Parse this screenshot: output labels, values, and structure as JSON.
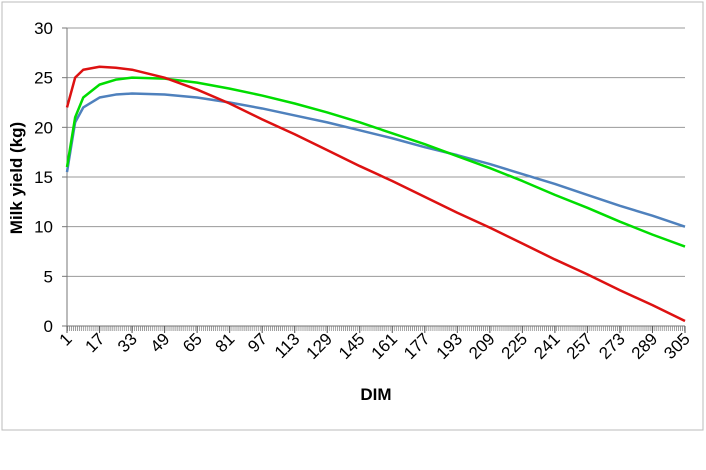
{
  "chart_data": {
    "type": "line",
    "x_label": "DIM",
    "y_label": "Milk yield (kg)",
    "x": [
      1,
      5,
      9,
      17,
      25,
      33,
      49,
      65,
      81,
      97,
      113,
      129,
      145,
      161,
      177,
      193,
      209,
      225,
      241,
      257,
      273,
      289,
      305
    ],
    "series": [
      {
        "color": "#4f81bd",
        "values": [
          15.5,
          20.5,
          22,
          23,
          23.3,
          23.4,
          23.3,
          23,
          22.5,
          21.9,
          21.2,
          20.5,
          19.7,
          18.9,
          18,
          17.2,
          16.3,
          15.3,
          14.3,
          13.2,
          12.1,
          11.1,
          10
        ]
      },
      {
        "color": "#00dd00",
        "values": [
          16,
          21,
          23,
          24.3,
          24.8,
          25,
          24.9,
          24.5,
          23.9,
          23.2,
          22.4,
          21.5,
          20.5,
          19.4,
          18.3,
          17.1,
          15.9,
          14.6,
          13.2,
          11.9,
          10.5,
          9.2,
          8
        ]
      },
      {
        "color": "#dd1111",
        "values": [
          22,
          25,
          25.8,
          26.1,
          26,
          25.8,
          25,
          23.8,
          22.4,
          20.8,
          19.3,
          17.7,
          16.1,
          14.6,
          13,
          11.4,
          9.9,
          8.3,
          6.7,
          5.2,
          3.6,
          2.1,
          0.5
        ]
      }
    ],
    "xlim": [
      1,
      305
    ],
    "xticks": [
      1,
      17,
      33,
      49,
      65,
      81,
      97,
      113,
      129,
      145,
      161,
      177,
      193,
      209,
      225,
      241,
      257,
      273,
      289,
      305
    ],
    "ylim": [
      0,
      30
    ],
    "yticks": [
      0,
      5,
      10,
      15,
      20,
      25,
      30
    ],
    "grid": true
  }
}
